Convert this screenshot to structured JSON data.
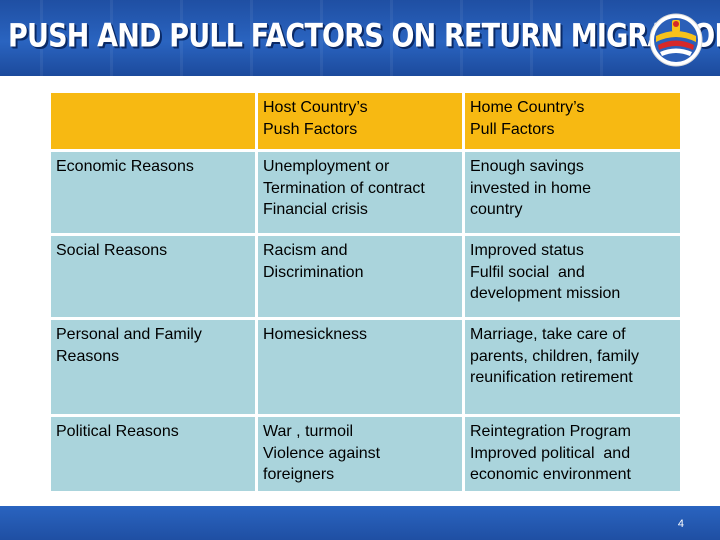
{
  "slide": {
    "title": "PUSH AND PULL FACTORS ON RETURN MIGRATION",
    "page_number": "4"
  },
  "table": {
    "headers": [
      "",
      "Host Country’s\nPush Factors",
      "Home Country’s\nPull Factors"
    ],
    "rows": [
      {
        "reason": "Economic Reasons",
        "push": "Unemployment or\nTermination of contract\nFinancial crisis",
        "pull": "Enough savings\ninvested in home\ncountry"
      },
      {
        "reason": "Social Reasons",
        "push": "Racism and\nDiscrimination",
        "pull": "Improved status\nFulfil social  and\ndevelopment mission"
      },
      {
        "reason": "Personal and Family\nReasons",
        "push": "Homesickness",
        "pull": "Marriage, take care of\nparents, children, family\nreunification retirement"
      },
      {
        "reason": "Political Reasons",
        "push": "War , turmoil\nViolence against\nforeigners",
        "pull": "Reintegration Program\nImproved political  and\neconomic environment"
      }
    ]
  },
  "colors": {
    "header_fill": "#f7b912",
    "row_fill": "#aad4dc",
    "title_bar": "#1f4fa3"
  },
  "icons": {
    "logo": "round-emblem-logo"
  }
}
